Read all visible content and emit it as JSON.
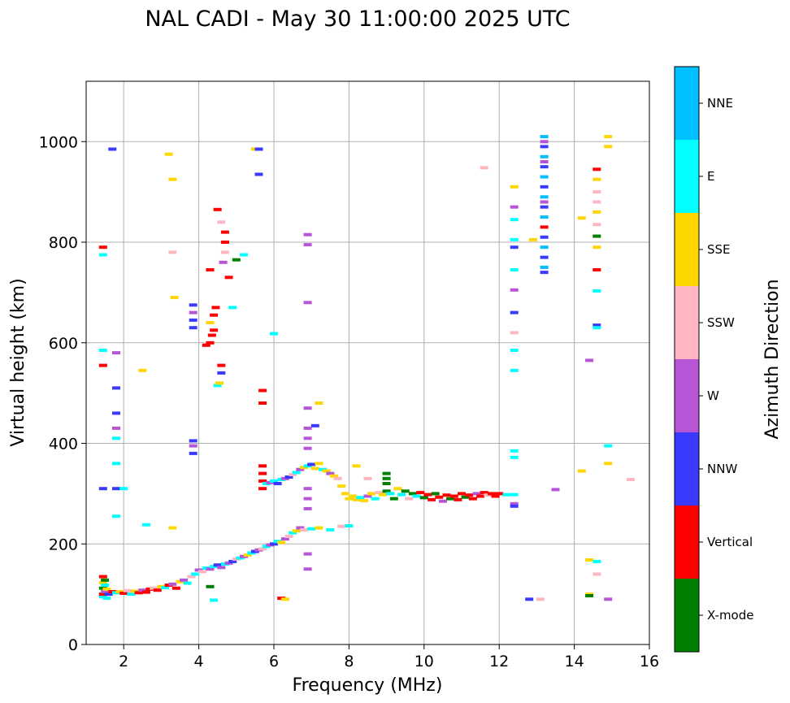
{
  "chart_data": {
    "type": "scatter",
    "title": "NAL CADI - May 30 11:00:00 2025 UTC",
    "xlabel": "Frequency (MHz)",
    "ylabel": "Virtual height (km)",
    "xlim": [
      1,
      16
    ],
    "ylim": [
      0,
      1120
    ],
    "xticks": [
      2,
      4,
      6,
      8,
      10,
      12,
      14,
      16
    ],
    "yticks": [
      0,
      200,
      400,
      600,
      800,
      1000
    ],
    "grid": true,
    "colorbar": {
      "label": "Azimuth Direction",
      "categories": [
        "X-mode",
        "Vertical",
        "NNW",
        "W",
        "SSW",
        "SSE",
        "E",
        "NNE"
      ],
      "colors": [
        "#008000",
        "#ff0000",
        "#3a3aff",
        "#b655d6",
        "#ffb6c1",
        "#ffd700",
        "#00ffff",
        "#00bfff"
      ]
    },
    "points": [
      [
        1.45,
        95,
        "E"
      ],
      [
        1.45,
        100,
        "Vertical"
      ],
      [
        1.45,
        112,
        "X-mode"
      ],
      [
        1.45,
        123,
        "SSE"
      ],
      [
        1.45,
        135,
        "Vertical"
      ],
      [
        1.5,
        105,
        "W"
      ],
      [
        1.5,
        118,
        "E"
      ],
      [
        1.5,
        128,
        "X-mode"
      ],
      [
        1.55,
        92,
        "E"
      ],
      [
        1.55,
        110,
        "SSE"
      ],
      [
        1.6,
        100,
        "NNW"
      ],
      [
        1.7,
        105,
        "Vertical"
      ],
      [
        1.8,
        103,
        "E"
      ],
      [
        1.9,
        105,
        "SSE"
      ],
      [
        2.0,
        102,
        "Vertical"
      ],
      [
        2.1,
        107,
        "SSW"
      ],
      [
        2.2,
        100,
        "E"
      ],
      [
        2.3,
        106,
        "SSE"
      ],
      [
        2.4,
        103,
        "Vertical"
      ],
      [
        2.5,
        108,
        "W"
      ],
      [
        2.6,
        104,
        "Vertical"
      ],
      [
        2.7,
        110,
        "Vertical"
      ],
      [
        2.8,
        112,
        "SSW"
      ],
      [
        2.9,
        108,
        "Vertical"
      ],
      [
        3.0,
        115,
        "SSE"
      ],
      [
        3.1,
        113,
        "E"
      ],
      [
        3.2,
        118,
        "Vertical"
      ],
      [
        3.3,
        120,
        "W"
      ],
      [
        3.4,
        112,
        "Vertical"
      ],
      [
        3.5,
        125,
        "SSE"
      ],
      [
        3.6,
        128,
        "W"
      ],
      [
        3.7,
        122,
        "E"
      ],
      [
        3.8,
        135,
        "SSW"
      ],
      [
        3.9,
        140,
        "E"
      ],
      [
        4.0,
        148,
        "W"
      ],
      [
        4.1,
        145,
        "SSW"
      ],
      [
        4.2,
        152,
        "E"
      ],
      [
        4.3,
        150,
        "W"
      ],
      [
        4.4,
        155,
        "E"
      ],
      [
        4.5,
        158,
        "NNW"
      ],
      [
        4.6,
        153,
        "W"
      ],
      [
        4.7,
        160,
        "E"
      ],
      [
        4.8,
        162,
        "W"
      ],
      [
        4.9,
        165,
        "NNW"
      ],
      [
        5.0,
        170,
        "SSW"
      ],
      [
        5.1,
        172,
        "E"
      ],
      [
        5.2,
        175,
        "W"
      ],
      [
        5.3,
        178,
        "SSE"
      ],
      [
        5.4,
        182,
        "E"
      ],
      [
        5.5,
        185,
        "NNW"
      ],
      [
        5.6,
        188,
        "W"
      ],
      [
        5.7,
        190,
        "SSW"
      ],
      [
        5.8,
        195,
        "E"
      ],
      [
        5.9,
        198,
        "W"
      ],
      [
        6.0,
        200,
        "NNW"
      ],
      [
        6.1,
        205,
        "E"
      ],
      [
        6.2,
        203,
        "SSE"
      ],
      [
        6.3,
        210,
        "W"
      ],
      [
        6.4,
        215,
        "SSW"
      ],
      [
        6.5,
        222,
        "E"
      ],
      [
        6.6,
        226,
        "SSE"
      ],
      [
        6.7,
        232,
        "W"
      ],
      [
        6.8,
        228,
        "SSW"
      ],
      [
        7.0,
        230,
        "E"
      ],
      [
        7.2,
        232,
        "SSE"
      ],
      [
        7.5,
        228,
        "E"
      ],
      [
        7.8,
        235,
        "SSW"
      ],
      [
        8.0,
        236,
        "E"
      ],
      [
        5.7,
        310,
        "Vertical"
      ],
      [
        5.7,
        325,
        "Vertical"
      ],
      [
        5.7,
        340,
        "Vertical"
      ],
      [
        5.7,
        355,
        "Vertical"
      ],
      [
        5.8,
        320,
        "E"
      ],
      [
        5.9,
        322,
        "W"
      ],
      [
        6.0,
        325,
        "E"
      ],
      [
        6.1,
        320,
        "NNW"
      ],
      [
        6.2,
        328,
        "E"
      ],
      [
        6.3,
        330,
        "W"
      ],
      [
        6.4,
        333,
        "NNW"
      ],
      [
        6.5,
        338,
        "SSW"
      ],
      [
        6.6,
        342,
        "E"
      ],
      [
        6.7,
        348,
        "W"
      ],
      [
        6.8,
        352,
        "SSE"
      ],
      [
        6.9,
        355,
        "E"
      ],
      [
        7.0,
        358,
        "NNW"
      ],
      [
        7.1,
        350,
        "SSE"
      ],
      [
        7.2,
        360,
        "SSE"
      ],
      [
        7.3,
        348,
        "E"
      ],
      [
        7.4,
        345,
        "SSE"
      ],
      [
        7.5,
        340,
        "W"
      ],
      [
        7.6,
        335,
        "SSE"
      ],
      [
        7.7,
        330,
        "SSW"
      ],
      [
        7.8,
        315,
        "SSE"
      ],
      [
        7.9,
        300,
        "SSE"
      ],
      [
        8.0,
        290,
        "SSE"
      ],
      [
        8.1,
        295,
        "SSE"
      ],
      [
        8.2,
        288,
        "SSE"
      ],
      [
        8.3,
        292,
        "E"
      ],
      [
        8.4,
        286,
        "SSE"
      ],
      [
        8.5,
        295,
        "W"
      ],
      [
        8.6,
        300,
        "SSE"
      ],
      [
        8.7,
        290,
        "E"
      ],
      [
        8.8,
        302,
        "SSW"
      ],
      [
        8.9,
        298,
        "SSE"
      ],
      [
        9.0,
        305,
        "X-mode"
      ],
      [
        9.1,
        300,
        "E"
      ],
      [
        9.2,
        290,
        "X-mode"
      ],
      [
        9.3,
        310,
        "SSE"
      ],
      [
        9.4,
        298,
        "E"
      ],
      [
        9.5,
        305,
        "X-mode"
      ],
      [
        9.6,
        290,
        "SSW"
      ],
      [
        9.7,
        300,
        "X-mode"
      ],
      [
        9.8,
        295,
        "E"
      ],
      [
        9.9,
        302,
        "Vertical"
      ],
      [
        10.0,
        292,
        "X-mode"
      ],
      [
        10.1,
        298,
        "Vertical"
      ],
      [
        10.2,
        288,
        "Vertical"
      ],
      [
        10.3,
        300,
        "X-mode"
      ],
      [
        10.4,
        293,
        "Vertical"
      ],
      [
        10.5,
        285,
        "W"
      ],
      [
        10.6,
        297,
        "Vertical"
      ],
      [
        10.7,
        290,
        "X-mode"
      ],
      [
        10.8,
        295,
        "Vertical"
      ],
      [
        10.9,
        288,
        "Vertical"
      ],
      [
        11.0,
        300,
        "Vertical"
      ],
      [
        11.1,
        293,
        "X-mode"
      ],
      [
        11.2,
        297,
        "Vertical"
      ],
      [
        11.3,
        290,
        "Vertical"
      ],
      [
        11.4,
        300,
        "W"
      ],
      [
        11.5,
        295,
        "Vertical"
      ],
      [
        11.6,
        302,
        "Vertical"
      ],
      [
        11.7,
        297,
        "SSW"
      ],
      [
        11.8,
        300,
        "Vertical"
      ],
      [
        11.9,
        295,
        "Vertical"
      ],
      [
        12.0,
        300,
        "Vertical"
      ],
      [
        12.2,
        298,
        "E"
      ],
      [
        12.4,
        298,
        "E"
      ],
      [
        12.4,
        280,
        "W"
      ],
      [
        12.4,
        275,
        "NNW"
      ],
      [
        9.0,
        340,
        "X-mode"
      ],
      [
        9.0,
        330,
        "X-mode"
      ],
      [
        9.0,
        320,
        "X-mode"
      ],
      [
        8.5,
        330,
        "SSW"
      ],
      [
        8.2,
        355,
        "SSE"
      ],
      [
        3.85,
        380,
        "NNW"
      ],
      [
        3.85,
        395,
        "W"
      ],
      [
        3.85,
        405,
        "NNW"
      ],
      [
        3.85,
        630,
        "NNW"
      ],
      [
        3.85,
        645,
        "NNW"
      ],
      [
        3.85,
        660,
        "W"
      ],
      [
        3.85,
        675,
        "NNW"
      ],
      [
        4.3,
        600,
        "Vertical"
      ],
      [
        4.35,
        615,
        "Vertical"
      ],
      [
        4.4,
        625,
        "Vertical"
      ],
      [
        4.3,
        640,
        "SSE"
      ],
      [
        4.4,
        655,
        "Vertical"
      ],
      [
        4.45,
        670,
        "Vertical"
      ],
      [
        4.2,
        595,
        "Vertical"
      ],
      [
        4.3,
        745,
        "Vertical"
      ],
      [
        4.5,
        515,
        "E"
      ],
      [
        4.55,
        520,
        "SSE"
      ],
      [
        4.6,
        540,
        "NNW"
      ],
      [
        4.6,
        555,
        "Vertical"
      ],
      [
        4.65,
        760,
        "W"
      ],
      [
        4.7,
        780,
        "SSW"
      ],
      [
        4.7,
        800,
        "Vertical"
      ],
      [
        4.7,
        820,
        "Vertical"
      ],
      [
        4.8,
        730,
        "Vertical"
      ],
      [
        4.5,
        865,
        "Vertical"
      ],
      [
        4.6,
        840,
        "SSW"
      ],
      [
        4.9,
        670,
        "E"
      ],
      [
        5.0,
        765,
        "X-mode"
      ],
      [
        5.2,
        775,
        "E"
      ],
      [
        5.7,
        505,
        "Vertical"
      ],
      [
        5.7,
        480,
        "Vertical"
      ],
      [
        5.5,
        985,
        "SSE"
      ],
      [
        5.6,
        985,
        "NNW"
      ],
      [
        5.6,
        935,
        "NNW"
      ],
      [
        6.0,
        618,
        "E"
      ],
      [
        1.45,
        585,
        "E"
      ],
      [
        1.45,
        555,
        "Vertical"
      ],
      [
        1.45,
        310,
        "NNW"
      ],
      [
        1.45,
        775,
        "E"
      ],
      [
        1.45,
        790,
        "Vertical"
      ],
      [
        1.7,
        985,
        "NNW"
      ],
      [
        1.8,
        580,
        "W"
      ],
      [
        1.8,
        510,
        "NNW"
      ],
      [
        1.8,
        460,
        "NNW"
      ],
      [
        1.8,
        430,
        "W"
      ],
      [
        1.8,
        410,
        "E"
      ],
      [
        1.8,
        360,
        "E"
      ],
      [
        1.8,
        310,
        "NNW"
      ],
      [
        1.8,
        255,
        "E"
      ],
      [
        2.0,
        310,
        "E"
      ],
      [
        3.3,
        925,
        "SSE"
      ],
      [
        3.3,
        780,
        "SSW"
      ],
      [
        3.35,
        690,
        "SSE"
      ],
      [
        3.3,
        232,
        "SSE"
      ],
      [
        3.2,
        975,
        "SSE"
      ],
      [
        2.5,
        545,
        "SSE"
      ],
      [
        2.6,
        238,
        "E"
      ],
      [
        6.9,
        815,
        "W"
      ],
      [
        6.9,
        795,
        "W"
      ],
      [
        6.9,
        680,
        "W"
      ],
      [
        6.9,
        470,
        "W"
      ],
      [
        6.9,
        430,
        "W"
      ],
      [
        6.9,
        410,
        "W"
      ],
      [
        6.9,
        390,
        "W"
      ],
      [
        6.9,
        310,
        "W"
      ],
      [
        6.9,
        290,
        "W"
      ],
      [
        6.9,
        270,
        "W"
      ],
      [
        6.9,
        180,
        "W"
      ],
      [
        6.9,
        150,
        "W"
      ],
      [
        7.2,
        480,
        "SSE"
      ],
      [
        7.1,
        435,
        "NNW"
      ],
      [
        6.2,
        92,
        "Vertical"
      ],
      [
        6.3,
        90,
        "SSE"
      ],
      [
        4.4,
        88,
        "E"
      ],
      [
        4.3,
        115,
        "X-mode"
      ],
      [
        12.4,
        910,
        "SSE"
      ],
      [
        12.4,
        870,
        "W"
      ],
      [
        12.4,
        845,
        "E"
      ],
      [
        12.4,
        805,
        "E"
      ],
      [
        12.4,
        790,
        "NNW"
      ],
      [
        12.4,
        745,
        "E"
      ],
      [
        12.4,
        705,
        "W"
      ],
      [
        12.4,
        660,
        "NNW"
      ],
      [
        12.4,
        620,
        "SSW"
      ],
      [
        12.4,
        585,
        "E"
      ],
      [
        12.4,
        545,
        "E"
      ],
      [
        12.4,
        385,
        "E"
      ],
      [
        12.4,
        372,
        "E"
      ],
      [
        12.9,
        805,
        "SSE"
      ],
      [
        11.6,
        948,
        "SSW"
      ],
      [
        13.2,
        1010,
        "NNE"
      ],
      [
        13.2,
        990,
        "NNW"
      ],
      [
        13.2,
        970,
        "NNE"
      ],
      [
        13.2,
        950,
        "NNW"
      ],
      [
        13.2,
        930,
        "NNE"
      ],
      [
        13.2,
        910,
        "NNW"
      ],
      [
        13.2,
        890,
        "NNE"
      ],
      [
        13.2,
        870,
        "NNW"
      ],
      [
        13.2,
        850,
        "NNE"
      ],
      [
        13.2,
        830,
        "Vertical"
      ],
      [
        13.2,
        810,
        "NNW"
      ],
      [
        13.2,
        790,
        "NNE"
      ],
      [
        13.2,
        770,
        "NNW"
      ],
      [
        13.2,
        750,
        "NNE"
      ],
      [
        13.2,
        740,
        "NNW"
      ],
      [
        13.2,
        1000,
        "W"
      ],
      [
        13.2,
        960,
        "W"
      ],
      [
        13.2,
        880,
        "W"
      ],
      [
        14.2,
        848,
        "SSE"
      ],
      [
        14.2,
        345,
        "SSE"
      ],
      [
        14.4,
        168,
        "SSE"
      ],
      [
        14.4,
        100,
        "SSE"
      ],
      [
        14.4,
        97,
        "X-mode"
      ],
      [
        14.4,
        565,
        "W"
      ],
      [
        14.6,
        945,
        "Vertical"
      ],
      [
        14.6,
        925,
        "SSE"
      ],
      [
        14.6,
        900,
        "SSW"
      ],
      [
        14.6,
        880,
        "SSW"
      ],
      [
        14.6,
        860,
        "SSE"
      ],
      [
        14.6,
        835,
        "SSW"
      ],
      [
        14.6,
        812,
        "X-mode"
      ],
      [
        14.6,
        790,
        "SSE"
      ],
      [
        14.6,
        745,
        "Vertical"
      ],
      [
        14.6,
        703,
        "E"
      ],
      [
        14.6,
        635,
        "NNW"
      ],
      [
        14.6,
        630,
        "E"
      ],
      [
        14.6,
        165,
        "E"
      ],
      [
        14.6,
        140,
        "SSW"
      ],
      [
        14.9,
        1010,
        "SSE"
      ],
      [
        14.9,
        990,
        "SSE"
      ],
      [
        14.9,
        395,
        "E"
      ],
      [
        14.9,
        360,
        "SSE"
      ],
      [
        14.9,
        90,
        "W"
      ],
      [
        15.5,
        328,
        "SSW"
      ],
      [
        13.5,
        308,
        "W"
      ],
      [
        12.8,
        90,
        "NNW"
      ],
      [
        13.1,
        90,
        "SSW"
      ]
    ]
  }
}
